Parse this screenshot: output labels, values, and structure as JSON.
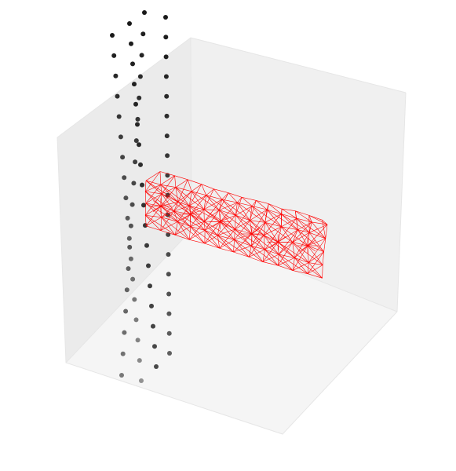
{
  "chart_data": {
    "type": "scatter",
    "projection": "3d",
    "title": "",
    "xlabel": "",
    "ylabel": "",
    "zlabel": "",
    "grid": false,
    "axes_visible": false,
    "colors": {
      "points": "#1a1a1a",
      "points_far": "#9a9a9a",
      "mesh": "#ff0000",
      "pane_left": "#ebebeb",
      "pane_right": "#f0f0f0",
      "pane_floor": "#f5f5f5"
    },
    "series": [
      {
        "kind": "points",
        "columns": [
          {
            "x": 0,
            "y": 0,
            "z": [
              0,
              1,
              2,
              3,
              4,
              5,
              6,
              7,
              8,
              9,
              10,
              11,
              12,
              13,
              14,
              15,
              16,
              17
            ]
          },
          {
            "x": 1,
            "y": 0,
            "z": [
              0,
              1,
              2,
              3,
              4,
              5,
              6,
              7,
              8,
              9,
              10,
              11,
              12,
              13,
              14,
              15,
              16,
              17
            ]
          },
          {
            "x": 0,
            "y": 1,
            "z": [
              0,
              1,
              2,
              3,
              4,
              5,
              6,
              7,
              8,
              9,
              10,
              11,
              12,
              13,
              14,
              15,
              16,
              17
            ]
          },
          {
            "x": 1,
            "y": 1,
            "z": [
              0,
              1,
              2,
              3,
              4,
              5,
              6,
              7,
              8,
              9,
              10,
              11,
              12,
              13,
              14,
              15,
              16,
              17
            ]
          }
        ]
      },
      {
        "kind": "tetrahedral-mesh",
        "x_range": [
          0,
          1
        ],
        "y_range": [
          1,
          9
        ],
        "z_range": [
          7,
          9
        ]
      }
    ]
  }
}
